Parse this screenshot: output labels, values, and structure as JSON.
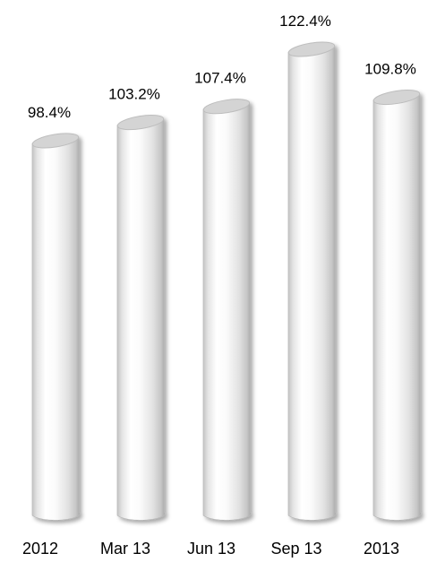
{
  "chart_data": {
    "type": "bar",
    "style": "3d-cylinder",
    "categories": [
      "2012",
      "Mar 13",
      "Jun 13",
      "Sep 13",
      "2013"
    ],
    "values": [
      98.4,
      103.2,
      107.4,
      122.4,
      109.8
    ],
    "data_labels": [
      "98.4%",
      "103.2%",
      "107.4%",
      "122.4%",
      "109.8%"
    ],
    "unit": "%",
    "title": "",
    "xlabel": "",
    "ylabel": "",
    "grid": false,
    "legend": "none",
    "colors": {
      "bar_light": "#ffffff",
      "bar_dark": "#a9a9a9",
      "top_fill": "#d4d4d4",
      "top_edge": "#bdbdbd",
      "text": "#000000"
    }
  }
}
